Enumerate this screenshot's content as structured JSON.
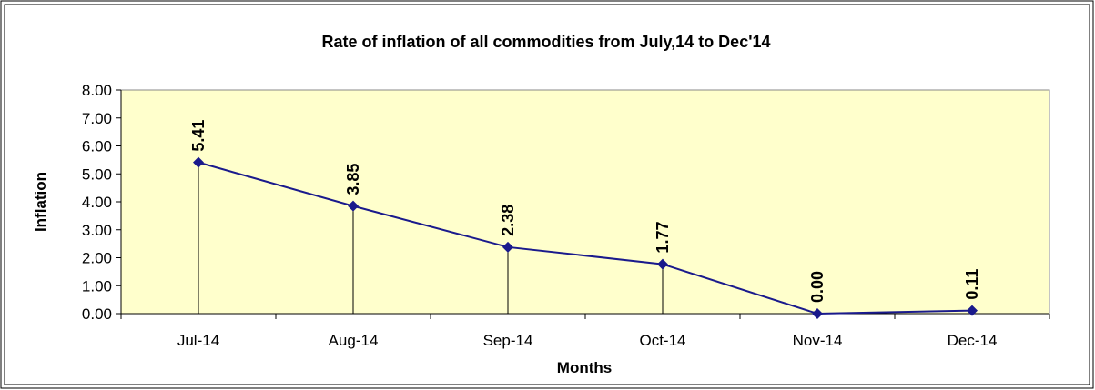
{
  "chart_data": {
    "type": "line",
    "title": "Rate of inflation  of all commodities from July,14 to Dec'14",
    "x_label": "Months",
    "y_label": "Inflation",
    "categories": [
      "Jul-14",
      "Aug-14",
      "Sep-14",
      "Oct-14",
      "Nov-14",
      "Dec-14"
    ],
    "series": [
      {
        "name": "Inflation",
        "color": "#1a1a8c",
        "values": [
          5.41,
          3.85,
          2.38,
          1.77,
          0,
          0.11
        ],
        "value_labels": [
          "5.41",
          "3.85",
          "2.38",
          "1.77",
          "0.00",
          "0.11"
        ]
      }
    ],
    "ylim": [
      0,
      8
    ],
    "yticks": [
      {
        "value": 0,
        "label": "0.00"
      },
      {
        "value": 1,
        "label": "1.00"
      },
      {
        "value": 2,
        "label": "2.00"
      },
      {
        "value": 3,
        "label": "3.00"
      },
      {
        "value": 4,
        "label": "4.00"
      },
      {
        "value": 5,
        "label": "5.00"
      },
      {
        "value": 6,
        "label": "6.00"
      },
      {
        "value": 7,
        "label": "7.00"
      },
      {
        "value": 8,
        "label": "8.00"
      }
    ],
    "plot_background": "#ffffcc",
    "drop_lines": true
  }
}
